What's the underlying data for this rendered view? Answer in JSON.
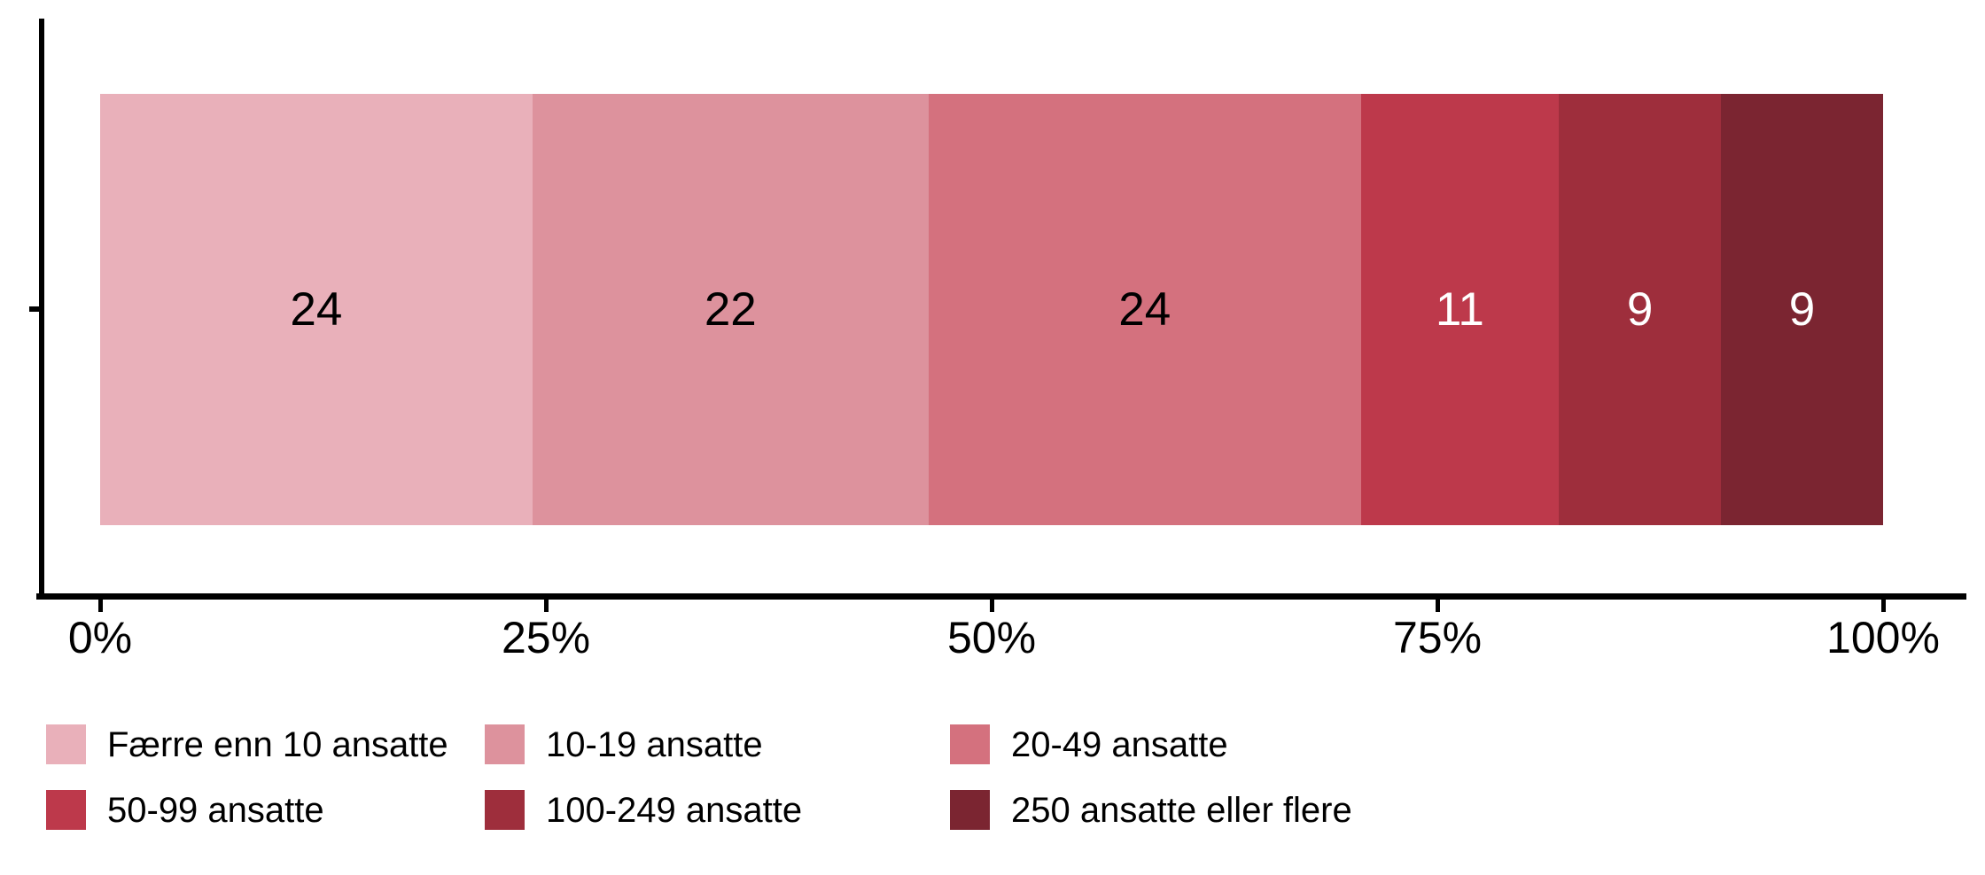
{
  "chart_data": {
    "type": "bar",
    "orientation": "horizontal",
    "stacked": true,
    "normalized_to_percent": true,
    "title": "",
    "xlabel": "",
    "ylabel": "",
    "categories": [
      ""
    ],
    "series": [
      {
        "name": "Færre enn 10 ansatte",
        "values": [
          24
        ],
        "color": "#e9b0ba",
        "label_color": "#000000"
      },
      {
        "name": "10-19 ansatte",
        "values": [
          22
        ],
        "color": "#dd929d",
        "label_color": "#000000"
      },
      {
        "name": "20-49 ansatte",
        "values": [
          24
        ],
        "color": "#d4717e",
        "label_color": "#000000"
      },
      {
        "name": "50-99 ansatte",
        "values": [
          11
        ],
        "color": "#bd394b",
        "label_color": "#ffffff"
      },
      {
        "name": "100-249 ansatte",
        "values": [
          9
        ],
        "color": "#9e2e3c",
        "label_color": "#ffffff"
      },
      {
        "name": "250 ansatte eller flere",
        "values": [
          9
        ],
        "color": "#7b2531",
        "label_color": "#ffffff"
      }
    ],
    "total": 99,
    "xlim": [
      0,
      100
    ],
    "x_tick_values": [
      0,
      25,
      50,
      75,
      100
    ],
    "x_tick_labels": [
      "0%",
      "25%",
      "50%",
      "75%",
      "100%"
    ],
    "grid": false,
    "legend_position": "bottom",
    "axis_color": "#000000"
  }
}
